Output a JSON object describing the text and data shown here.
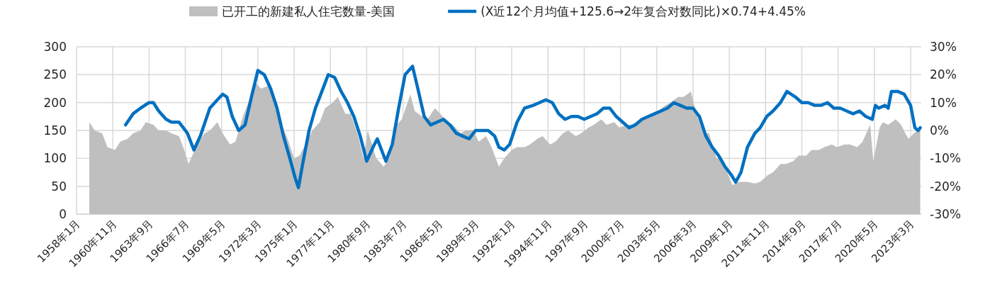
{
  "chart_data": {
    "type": "area",
    "xlim": [
      "1958-01",
      "2024-01"
    ],
    "xticks": [
      {
        "value": "1958-01",
        "label": "1958年1月"
      },
      {
        "value": "1960-11",
        "label": "1960年11月"
      },
      {
        "value": "1963-09",
        "label": "1963年9月"
      },
      {
        "value": "1966-07",
        "label": "1966年7月"
      },
      {
        "value": "1969-05",
        "label": "1969年5月"
      },
      {
        "value": "1972-03",
        "label": "1972年3月"
      },
      {
        "value": "1975-01",
        "label": "1975年1月"
      },
      {
        "value": "1977-11",
        "label": "1977年11月"
      },
      {
        "value": "1980-09",
        "label": "1980年9月"
      },
      {
        "value": "1983-07",
        "label": "1983年7月"
      },
      {
        "value": "1986-05",
        "label": "1986年5月"
      },
      {
        "value": "1989-03",
        "label": "1989年3月"
      },
      {
        "value": "1992-01",
        "label": "1992年1月"
      },
      {
        "value": "1994-11",
        "label": "1994年11月"
      },
      {
        "value": "1997-09",
        "label": "1997年9月"
      },
      {
        "value": "2000-07",
        "label": "2000年7月"
      },
      {
        "value": "2003-05",
        "label": "2003年5月"
      },
      {
        "value": "2006-03",
        "label": "2006年3月"
      },
      {
        "value": "2009-01",
        "label": "2009年1月"
      },
      {
        "value": "2011-11",
        "label": "2011年11月"
      },
      {
        "value": "2014-09",
        "label": "2014年9月"
      },
      {
        "value": "2017-07",
        "label": "2017年7月"
      },
      {
        "value": "2020-05",
        "label": "2020年5月"
      },
      {
        "value": "2023-03",
        "label": "2023年3月"
      }
    ],
    "ylim": [
      0,
      300
    ],
    "yticks": [
      0,
      50,
      100,
      150,
      200,
      250,
      300
    ],
    "y2lim": [
      -30,
      30
    ],
    "y2ticks": [
      {
        "value": -30,
        "label": "-30%"
      },
      {
        "value": -20,
        "label": "-20%"
      },
      {
        "value": -10,
        "label": "-10%"
      },
      {
        "value": 0,
        "label": "0%"
      },
      {
        "value": 10,
        "label": "10%"
      },
      {
        "value": 20,
        "label": "20%"
      },
      {
        "value": 30,
        "label": "30%"
      }
    ],
    "grid": true,
    "legend": "top",
    "series": [
      {
        "name": "已开工的新建私人住宅数量-美国",
        "color": "#bfbfbf",
        "x": [
          "1959-01",
          "1959-06",
          "1960-01",
          "1960-06",
          "1961-01",
          "1961-06",
          "1962-01",
          "1962-06",
          "1963-01",
          "1963-06",
          "1964-01",
          "1964-06",
          "1965-01",
          "1965-06",
          "1966-01",
          "1966-06",
          "1966-10",
          "1967-06",
          "1968-01",
          "1968-06",
          "1969-01",
          "1969-06",
          "1970-01",
          "1970-06",
          "1971-01",
          "1971-06",
          "1972-01",
          "1972-06",
          "1973-01",
          "1973-06",
          "1974-01",
          "1974-06",
          "1975-01",
          "1975-06",
          "1976-01",
          "1976-06",
          "1977-01",
          "1977-06",
          "1978-01",
          "1978-06",
          "1979-01",
          "1979-06",
          "1980-01",
          "1980-06",
          "1980-10",
          "1981-06",
          "1982-01",
          "1982-06",
          "1983-01",
          "1983-06",
          "1984-02",
          "1984-06",
          "1985-01",
          "1985-06",
          "1986-01",
          "1986-06",
          "1987-01",
          "1987-06",
          "1988-01",
          "1988-06",
          "1989-01",
          "1989-06",
          "1990-01",
          "1990-06",
          "1991-01",
          "1991-06",
          "1992-01",
          "1992-06",
          "1993-01",
          "1993-06",
          "1994-01",
          "1994-06",
          "1995-01",
          "1995-06",
          "1996-01",
          "1996-06",
          "1997-01",
          "1997-06",
          "1998-01",
          "1998-06",
          "1999-01",
          "1999-06",
          "2000-01",
          "2000-06",
          "2001-01",
          "2001-06",
          "2002-01",
          "2002-06",
          "2003-01",
          "2003-06",
          "2004-01",
          "2004-06",
          "2005-01",
          "2005-06",
          "2006-01",
          "2006-06",
          "2007-01",
          "2007-06",
          "2008-01",
          "2008-06",
          "2009-01",
          "2009-04",
          "2009-10",
          "2010-06",
          "2011-01",
          "2011-06",
          "2012-01",
          "2012-06",
          "2013-01",
          "2013-06",
          "2014-01",
          "2014-06",
          "2015-01",
          "2015-06",
          "2016-01",
          "2016-06",
          "2017-01",
          "2017-06",
          "2018-01",
          "2018-06",
          "2019-01",
          "2019-06",
          "2020-01",
          "2020-04",
          "2020-10",
          "2021-01",
          "2021-06",
          "2022-01",
          "2022-06",
          "2022-10",
          "2023-01",
          "2023-06",
          "2023-12"
        ],
        "values": [
          165,
          150,
          145,
          120,
          115,
          130,
          135,
          145,
          150,
          165,
          160,
          150,
          150,
          145,
          140,
          115,
          90,
          125,
          145,
          150,
          165,
          145,
          125,
          130,
          175,
          200,
          235,
          225,
          230,
          200,
          160,
          140,
          100,
          105,
          130,
          150,
          165,
          190,
          200,
          210,
          180,
          180,
          140,
          100,
          150,
          100,
          85,
          100,
          160,
          170,
          215,
          185,
          175,
          170,
          190,
          180,
          165,
          160,
          145,
          150,
          150,
          130,
          140,
          120,
          85,
          100,
          115,
          120,
          120,
          125,
          135,
          140,
          125,
          130,
          145,
          150,
          140,
          145,
          155,
          160,
          170,
          160,
          165,
          155,
          160,
          160,
          170,
          170,
          180,
          185,
          195,
          200,
          210,
          210,
          220,
          180,
          145,
          145,
          100,
          100,
          65,
          52,
          58,
          58,
          55,
          58,
          70,
          75,
          90,
          90,
          95,
          105,
          105,
          115,
          115,
          120,
          125,
          120,
          125,
          125,
          120,
          130,
          160,
          95,
          155,
          165,
          160,
          170,
          160,
          145,
          135,
          145,
          155
        ]
      },
      {
        "name": "(X近12个月均值+125.6→2年复合对数同比)×0.74+4.45%",
        "type": "line",
        "axis": "y2",
        "color": "#0070c0",
        "x": [
          "1961-11",
          "1962-06",
          "1963-01",
          "1963-09",
          "1964-01",
          "1964-06",
          "1965-01",
          "1965-06",
          "1966-01",
          "1966-09",
          "1967-03",
          "1967-09",
          "1968-06",
          "1969-01",
          "1969-06",
          "1969-10",
          "1970-03",
          "1970-09",
          "1971-03",
          "1971-09",
          "1972-03",
          "1972-09",
          "1973-03",
          "1973-09",
          "1974-03",
          "1974-09",
          "1975-02",
          "1975-05",
          "1975-09",
          "1976-03",
          "1976-09",
          "1977-03",
          "1977-09",
          "1978-03",
          "1978-09",
          "1979-03",
          "1979-09",
          "1980-03",
          "1980-09",
          "1981-03",
          "1981-07",
          "1981-12",
          "1982-03",
          "1982-09",
          "1983-03",
          "1983-09",
          "1984-04",
          "1984-09",
          "1985-03",
          "1985-09",
          "1986-03",
          "1986-09",
          "1987-03",
          "1987-09",
          "1988-03",
          "1988-09",
          "1989-03",
          "1989-09",
          "1990-03",
          "1990-09",
          "1991-01",
          "1991-06",
          "1991-11",
          "1992-06",
          "1993-01",
          "1993-09",
          "1994-03",
          "1994-09",
          "1995-03",
          "1995-09",
          "1996-03",
          "1996-09",
          "1997-03",
          "1997-09",
          "1998-03",
          "1998-09",
          "1999-03",
          "1999-09",
          "2000-03",
          "2000-09",
          "2001-03",
          "2001-09",
          "2002-03",
          "2002-09",
          "2003-03",
          "2003-09",
          "2004-03",
          "2004-09",
          "2005-03",
          "2005-09",
          "2006-03",
          "2006-09",
          "2007-03",
          "2007-09",
          "2008-03",
          "2008-09",
          "2009-03",
          "2009-07",
          "2009-12",
          "2010-06",
          "2011-01",
          "2011-06",
          "2011-12",
          "2012-06",
          "2013-01",
          "2013-07",
          "2014-03",
          "2014-09",
          "2015-03",
          "2015-09",
          "2016-03",
          "2016-09",
          "2017-03",
          "2017-09",
          "2018-03",
          "2018-09",
          "2019-03",
          "2019-09",
          "2020-03",
          "2020-06",
          "2020-09",
          "2021-03",
          "2021-06",
          "2021-09",
          "2022-03",
          "2022-09",
          "2023-03",
          "2023-07",
          "2023-10",
          "2023-12"
        ],
        "values": [
          2,
          6,
          8,
          10,
          10,
          7,
          4,
          3,
          3,
          -1,
          -7,
          -2,
          8,
          11,
          13,
          12,
          5,
          0,
          2,
          12,
          21.5,
          20,
          15,
          8,
          -2,
          -10,
          -17,
          -20.5,
          -12,
          0,
          8,
          14,
          20,
          19,
          14,
          10,
          5,
          -2,
          -11,
          -6,
          -3,
          -8,
          -11,
          -5,
          8,
          20,
          23,
          15,
          5,
          2,
          3,
          4,
          2,
          -1,
          -2,
          -3,
          0,
          0,
          0,
          -2,
          -6,
          -7,
          -5,
          3,
          8,
          9,
          10,
          11,
          10,
          6,
          4,
          5,
          5,
          4,
          5,
          6,
          8,
          8,
          5,
          3,
          1,
          2,
          4,
          5,
          6,
          7,
          8,
          10,
          9,
          8,
          8,
          5,
          -2,
          -6,
          -9,
          -13,
          -16,
          -18.5,
          -15,
          -6,
          -1,
          1,
          5,
          7,
          10,
          14,
          12,
          10,
          10,
          9,
          9,
          10,
          8,
          8,
          7,
          6,
          7,
          5,
          4,
          9,
          8,
          9,
          8,
          14,
          14,
          13,
          9,
          1,
          0,
          1
        ]
      }
    ]
  }
}
